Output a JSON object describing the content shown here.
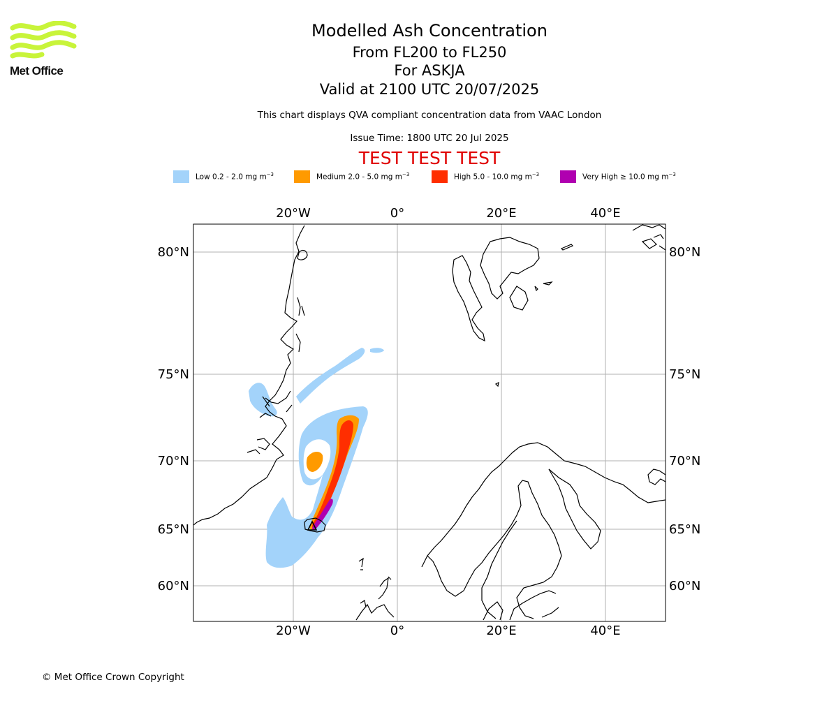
{
  "header": {
    "logo_text": "Met Office",
    "logo_color": "#c8f43a",
    "title": "Modelled Ash Concentration",
    "level_range": "From FL200 to FL250",
    "volcano": "For ASKJA",
    "valid_time": "Valid at 2100 UTC 20/07/2025",
    "description": "This chart displays QVA compliant concentration data from VAAC London",
    "issue_time": "Issue Time: 1800 UTC 20 Jul 2025",
    "test_banner": "TEST TEST TEST",
    "test_banner_color": "#e00000"
  },
  "legend": [
    {
      "label": "Low 0.2 - 2.0 mg m",
      "unit_exp": "−3",
      "color": "#a3d3fa"
    },
    {
      "label": "Medium 2.0 - 5.0 mg m",
      "unit_exp": "−3",
      "color": "#ff9a00"
    },
    {
      "label": "High 5.0 - 10.0 mg m",
      "unit_exp": "−3",
      "color": "#ff2e00"
    },
    {
      "label": "Very High  ≥  10.0 mg m",
      "unit_exp": "−3",
      "color": "#b000b0"
    }
  ],
  "map": {
    "longitude_ticks": [
      "20°W",
      "0°",
      "20°E",
      "40°E"
    ],
    "latitude_ticks": [
      "80°N",
      "75°N",
      "70°N",
      "65°N",
      "60°N"
    ],
    "gridline_color": "#b0b0b0",
    "coastline_color": "#000000"
  },
  "footer": {
    "copyright": "© Met Office Crown Copyright"
  }
}
